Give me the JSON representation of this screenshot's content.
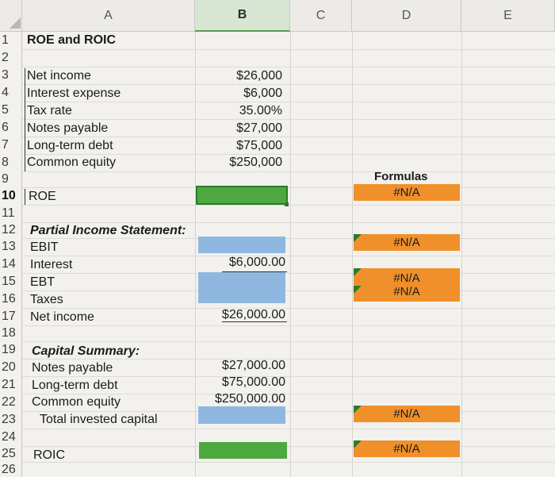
{
  "columns": [
    "A",
    "B",
    "C",
    "D",
    "E"
  ],
  "rows": [
    "1",
    "2",
    "3",
    "4",
    "5",
    "6",
    "7",
    "8",
    "9",
    "10",
    "11",
    "12",
    "13",
    "14",
    "15",
    "16",
    "17",
    "18",
    "19",
    "20",
    "21",
    "22",
    "23",
    "24",
    "25",
    "26"
  ],
  "cells": {
    "title": "ROE and ROIC",
    "net_income_label": "Net income",
    "interest_expense_label": "Interest expense",
    "tax_rate_label": "Tax rate",
    "notes_payable_label": "Notes payable",
    "long_term_debt_label": "Long-term debt",
    "common_equity_label": "Common equity",
    "roe_label": "ROE",
    "partial_income_label": "Partial Income Statement:",
    "ebit_label": "EBIT",
    "interest_label": "Interest",
    "ebt_label": "EBT",
    "taxes_label": "Taxes",
    "net_income2_label": "Net income",
    "capital_summary_label": "Capital Summary:",
    "notes_payable2_label": "Notes payable",
    "long_term_debt2_label": "Long-term debt",
    "common_equity2_label": "Common equity",
    "total_invested_label": "Total invested capital",
    "roic_label": "ROIC",
    "net_income_value": "$26,000",
    "interest_expense_value": "$6,000",
    "tax_rate_value": "35.00%",
    "notes_payable_value": "$27,000",
    "long_term_debt_value": "$75,000",
    "common_equity_value": "$250,000",
    "interest_value": "$6,000.00",
    "net_income2_value": "$26,000.00",
    "notes_payable2_value": "$27,000.00",
    "long_term_debt2_value": "$75,000.00",
    "common_equity2_value": "$250,000.00",
    "formulas_header": "Formulas",
    "na": "#N/A"
  },
  "colors": {
    "green": "#4ea840",
    "blue": "#8fb8e0",
    "orange": "#f0902a"
  }
}
